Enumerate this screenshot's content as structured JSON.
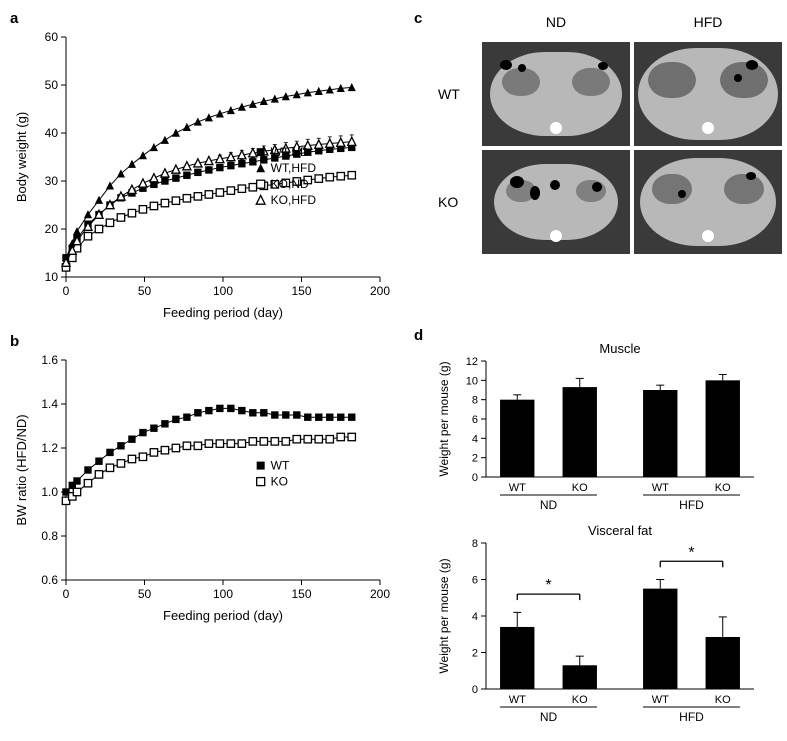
{
  "panel_a": {
    "label": "a",
    "type": "line-scatter",
    "x_label": "Feeding period (day)",
    "y_label": "Body weight (g)",
    "xlim": [
      0,
      200
    ],
    "ylim": [
      10,
      60
    ],
    "xtick_step": 50,
    "ytick_step": 10,
    "tick_fontsize": 12,
    "axis_fontsize": 13,
    "background_color": "#ffffff",
    "axes_color": "#000000",
    "series": [
      {
        "name": "WT,ND",
        "marker": "square-filled",
        "color": "#000000",
        "x": [
          0,
          4,
          7,
          14,
          21,
          28,
          35,
          42,
          49,
          56,
          63,
          70,
          77,
          84,
          91,
          98,
          105,
          112,
          119,
          126,
          133,
          140,
          147,
          154,
          161,
          168,
          175,
          182
        ],
        "y": [
          14,
          16,
          18,
          21,
          23,
          25,
          26.5,
          27.5,
          28.5,
          29.3,
          30,
          30.6,
          31.2,
          31.8,
          32.3,
          32.8,
          33.2,
          33.6,
          34,
          34.4,
          34.8,
          35.2,
          35.6,
          36,
          36.3,
          36.6,
          36.8,
          37.0
        ],
        "err": [
          0,
          0,
          0,
          0,
          0,
          0,
          0,
          0,
          0,
          0,
          0,
          0,
          0,
          0,
          0,
          0,
          0,
          0,
          0,
          0,
          0,
          0,
          0,
          0,
          0,
          0,
          0,
          0
        ]
      },
      {
        "name": "WT,HFD",
        "marker": "triangle-filled",
        "color": "#000000",
        "x": [
          0,
          4,
          7,
          14,
          21,
          28,
          35,
          42,
          49,
          56,
          63,
          70,
          77,
          84,
          91,
          98,
          105,
          112,
          119,
          126,
          133,
          140,
          147,
          154,
          161,
          168,
          175,
          182
        ],
        "y": [
          14,
          17,
          19.5,
          23,
          26,
          29,
          31.5,
          33.5,
          35.3,
          37,
          38.5,
          40,
          41.2,
          42.3,
          43.2,
          44,
          44.7,
          45.4,
          46,
          46.6,
          47.1,
          47.6,
          48,
          48.4,
          48.7,
          49,
          49.3,
          49.5
        ],
        "err": [
          0,
          0,
          0,
          0,
          0,
          0,
          0,
          0,
          0,
          0,
          0,
          0,
          0,
          0,
          0,
          0,
          0,
          0,
          0,
          0,
          0,
          0,
          0,
          0,
          0,
          0,
          0,
          0
        ]
      },
      {
        "name": "KO,ND",
        "marker": "square-open",
        "color": "#000000",
        "x": [
          0,
          4,
          7,
          14,
          21,
          28,
          35,
          42,
          49,
          56,
          63,
          70,
          77,
          84,
          91,
          98,
          105,
          112,
          119,
          126,
          133,
          140,
          147,
          154,
          161,
          168,
          175,
          182
        ],
        "y": [
          12,
          14,
          16,
          18.5,
          20,
          21.3,
          22.4,
          23.3,
          24.1,
          24.8,
          25.4,
          25.9,
          26.4,
          26.8,
          27.2,
          27.6,
          28,
          28.4,
          28.7,
          29,
          29.3,
          29.6,
          29.9,
          30.2,
          30.5,
          30.8,
          31,
          31.2
        ],
        "err": [
          0,
          0,
          0,
          0,
          0,
          0,
          0,
          0,
          0,
          0,
          0,
          0,
          0,
          0,
          0,
          0,
          0,
          0,
          0,
          0,
          0,
          0,
          0,
          0,
          0,
          0,
          0,
          0
        ]
      },
      {
        "name": "KO,HFD",
        "marker": "triangle-open",
        "color": "#000000",
        "x": [
          0,
          4,
          7,
          14,
          21,
          28,
          35,
          42,
          49,
          56,
          63,
          70,
          77,
          84,
          91,
          98,
          105,
          112,
          119,
          126,
          133,
          140,
          147,
          154,
          161,
          168,
          175,
          182
        ],
        "y": [
          13,
          15.5,
          17.5,
          20.5,
          23,
          25,
          26.8,
          28.2,
          29.5,
          30.6,
          31.6,
          32.4,
          33.1,
          33.7,
          34.2,
          34.6,
          35,
          35.4,
          35.8,
          36.2,
          36.5,
          36.8,
          37.1,
          37.4,
          37.6,
          37.8,
          38,
          38.2
        ],
        "err": [
          0,
          0,
          0,
          0,
          0,
          0,
          0,
          0,
          0,
          0,
          0,
          0,
          0,
          0,
          0,
          0.8,
          0.9,
          1.0,
          1.0,
          1.1,
          1.1,
          1.2,
          1.2,
          1.3,
          1.3,
          1.4,
          1.4,
          1.4
        ]
      }
    ],
    "legend_pos": "right-middle",
    "marker_size": 5,
    "line_width": 1
  },
  "panel_b": {
    "label": "b",
    "type": "line-scatter",
    "x_label": "Feeding period (day)",
    "y_label": "BW ratio (HFD/ND)",
    "xlim": [
      0,
      200
    ],
    "ylim": [
      0.6,
      1.6
    ],
    "xtick_step": 50,
    "ytick_step": 0.2,
    "tick_fontsize": 12,
    "axis_fontsize": 13,
    "background_color": "#ffffff",
    "axes_color": "#000000",
    "series": [
      {
        "name": "WT",
        "marker": "square-filled",
        "color": "#000000",
        "x": [
          0,
          4,
          7,
          14,
          21,
          28,
          35,
          42,
          49,
          56,
          63,
          70,
          77,
          84,
          91,
          98,
          105,
          112,
          119,
          126,
          133,
          140,
          147,
          154,
          161,
          168,
          175,
          182
        ],
        "y": [
          1.0,
          1.03,
          1.05,
          1.1,
          1.14,
          1.18,
          1.21,
          1.24,
          1.27,
          1.29,
          1.31,
          1.33,
          1.34,
          1.36,
          1.37,
          1.38,
          1.38,
          1.37,
          1.36,
          1.36,
          1.35,
          1.35,
          1.35,
          1.34,
          1.34,
          1.34,
          1.34,
          1.34
        ]
      },
      {
        "name": "KO",
        "marker": "square-open",
        "color": "#000000",
        "x": [
          0,
          4,
          7,
          14,
          21,
          28,
          35,
          42,
          49,
          56,
          63,
          70,
          77,
          84,
          91,
          98,
          105,
          112,
          119,
          126,
          133,
          140,
          147,
          154,
          161,
          168,
          175,
          182
        ],
        "y": [
          0.96,
          0.98,
          1.0,
          1.04,
          1.08,
          1.11,
          1.13,
          1.15,
          1.16,
          1.18,
          1.19,
          1.2,
          1.21,
          1.21,
          1.22,
          1.22,
          1.22,
          1.22,
          1.23,
          1.23,
          1.23,
          1.23,
          1.24,
          1.24,
          1.24,
          1.24,
          1.25,
          1.25
        ]
      }
    ],
    "legend_pos": "right-middle",
    "marker_size": 5,
    "line_width": 1
  },
  "panel_c": {
    "label": "c",
    "col_labels": [
      "ND",
      "HFD"
    ],
    "row_labels": [
      "WT",
      "KO"
    ]
  },
  "panel_d": {
    "label": "d",
    "charts": [
      {
        "title": "Muscle",
        "type": "bar",
        "y_label": "Weight per mouse (g)",
        "ylim": [
          0,
          12
        ],
        "ytick_step": 2,
        "categories": [
          "WT",
          "KO",
          "WT",
          "KO"
        ],
        "group_labels": [
          "ND",
          "HFD"
        ],
        "values": [
          8.0,
          9.3,
          9.0,
          10.0
        ],
        "err": [
          0.5,
          0.9,
          0.5,
          0.6
        ],
        "bar_color": "#000000",
        "bar_width": 0.55,
        "sig": []
      },
      {
        "title": "Visceral fat",
        "type": "bar",
        "y_label": "Weight per mouse (g)",
        "ylim": [
          0,
          8
        ],
        "ytick_step": 2,
        "categories": [
          "WT",
          "KO",
          "WT",
          "KO"
        ],
        "group_labels": [
          "ND",
          "HFD"
        ],
        "values": [
          3.4,
          1.3,
          5.5,
          2.85
        ],
        "err": [
          0.8,
          0.5,
          0.5,
          1.1
        ],
        "bar_color": "#000000",
        "bar_width": 0.55,
        "sig": [
          {
            "from": 0,
            "to": 1,
            "y": 5.2,
            "label": "*"
          },
          {
            "from": 2,
            "to": 3,
            "y": 7.0,
            "label": "*"
          }
        ]
      }
    ],
    "tick_fontsize": 11,
    "axis_fontsize": 12,
    "title_fontsize": 13
  },
  "colors": {
    "bg": "#ffffff",
    "axis": "#000000",
    "bar": "#000000"
  }
}
